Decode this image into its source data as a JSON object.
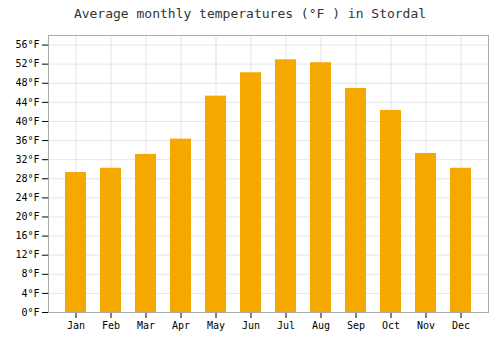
{
  "chart_data": {
    "type": "bar",
    "title": "Average monthly temperatures (°F ) in Stordal",
    "categories": [
      "Jan",
      "Feb",
      "Mar",
      "Apr",
      "May",
      "Jun",
      "Jul",
      "Aug",
      "Sep",
      "Oct",
      "Nov",
      "Dec"
    ],
    "values": [
      29.3,
      30.2,
      33.1,
      36.3,
      45.3,
      50.2,
      52.9,
      52.3,
      46.9,
      42.3,
      33.3,
      30.2
    ],
    "color": "#F5A800",
    "ylim": [
      0,
      58
    ],
    "yticks": [
      {
        "value": 0,
        "label": "0°F"
      },
      {
        "value": 4,
        "label": "4°F"
      },
      {
        "value": 8,
        "label": "8°F"
      },
      {
        "value": 12,
        "label": "12°F"
      },
      {
        "value": 16,
        "label": "16°F"
      },
      {
        "value": 20,
        "label": "20°F"
      },
      {
        "value": 24,
        "label": "24°F"
      },
      {
        "value": 28,
        "label": "28°F"
      },
      {
        "value": 32,
        "label": "32°F"
      },
      {
        "value": 36,
        "label": "36°F"
      },
      {
        "value": 40,
        "label": "40°F"
      },
      {
        "value": 44,
        "label": "44°F"
      },
      {
        "value": 48,
        "label": "48°F"
      },
      {
        "value": 52,
        "label": "52°F"
      },
      {
        "value": 56,
        "label": "56°F"
      }
    ],
    "grid": true
  }
}
